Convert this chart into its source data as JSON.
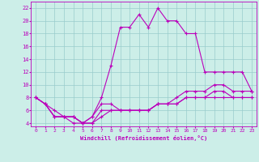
{
  "xlabel": "Windchill (Refroidissement éolien,°C)",
  "xlim": [
    -0.5,
    23.5
  ],
  "ylim": [
    3.5,
    23
  ],
  "xticks": [
    0,
    1,
    2,
    3,
    4,
    5,
    6,
    7,
    8,
    9,
    10,
    11,
    12,
    13,
    14,
    15,
    16,
    17,
    18,
    19,
    20,
    21,
    22,
    23
  ],
  "yticks": [
    4,
    6,
    8,
    10,
    12,
    14,
    16,
    18,
    20,
    22
  ],
  "bg_color": "#cceee8",
  "line_color": "#bb00bb",
  "grid_color": "#99cccc",
  "line1": [
    8,
    7,
    6,
    5,
    5,
    4,
    5,
    8,
    13,
    19,
    19,
    21,
    19,
    22,
    20,
    20,
    18,
    18,
    12,
    12,
    12,
    12,
    12,
    9
  ],
  "line2": [
    8,
    7,
    5,
    5,
    5,
    4,
    5,
    7,
    7,
    6,
    6,
    6,
    6,
    7,
    7,
    8,
    9,
    9,
    9,
    10,
    10,
    9,
    9,
    9
  ],
  "line3": [
    8,
    7,
    5,
    5,
    5,
    4,
    4,
    6,
    6,
    6,
    6,
    6,
    6,
    7,
    7,
    7,
    8,
    8,
    8,
    9,
    9,
    8,
    8,
    8
  ],
  "line4": [
    8,
    7,
    5,
    5,
    4,
    4,
    4,
    5,
    6,
    6,
    6,
    6,
    6,
    7,
    7,
    7,
    8,
    8,
    8,
    8,
    8,
    8,
    8,
    8
  ]
}
